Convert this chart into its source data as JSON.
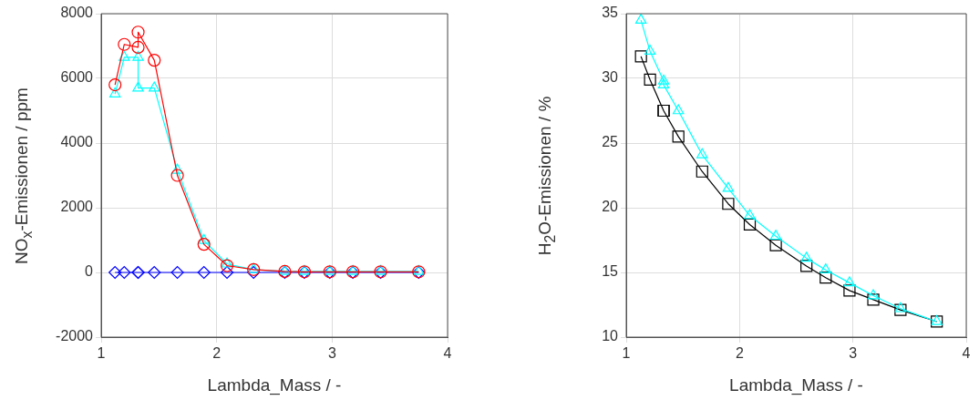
{
  "chart_data": [
    {
      "type": "line",
      "xlabel": "Lambda_Mass / -",
      "ylabel": "NO$_{x}$-Emissionen / ppm",
      "x": [
        1.12,
        1.2,
        1.32,
        1.32,
        1.46,
        1.66,
        1.89,
        2.09,
        2.32,
        2.59,
        2.76,
        2.98,
        3.18,
        3.42,
        3.75
      ],
      "xlim": [
        1,
        4
      ],
      "xticks": [
        1,
        2,
        3,
        4
      ],
      "ylim": [
        -2000,
        8000
      ],
      "yticks": [
        -2000,
        0,
        2000,
        4000,
        6000,
        8000
      ],
      "grid": true,
      "legend": false,
      "line_style": "solid",
      "series": [
        {
          "color": "#ff0000",
          "marker": "circle",
          "values": [
            5800,
            7050,
            6960,
            7430,
            6560,
            3000,
            870,
            210,
            90,
            30,
            20,
            20,
            20,
            20,
            20
          ]
        },
        {
          "color": "#00ffff",
          "marker": "triangle",
          "values": [
            5520,
            6650,
            6650,
            5700,
            5700,
            3160,
            990,
            260,
            90,
            30,
            30,
            30,
            30,
            30,
            30
          ]
        },
        {
          "color": "#0000ff",
          "marker": "diamond",
          "values": [
            0,
            0,
            0,
            0,
            0,
            0,
            0,
            0,
            0,
            0,
            0,
            0,
            0,
            0,
            0
          ]
        }
      ]
    },
    {
      "type": "line",
      "xlabel": "Lambda_Mass / -",
      "ylabel": "H$_{2}$O-Emissionen / %",
      "x": [
        1.13,
        1.21,
        1.33,
        1.33,
        1.46,
        1.67,
        1.9,
        2.09,
        2.32,
        2.59,
        2.76,
        2.97,
        3.18,
        3.42,
        3.74
      ],
      "xlim": [
        1,
        4
      ],
      "xticks": [
        1,
        2,
        3,
        4
      ],
      "ylim": [
        10,
        35
      ],
      "yticks": [
        10,
        15,
        20,
        25,
        30,
        35
      ],
      "grid": true,
      "legend": false,
      "line_style": "solid",
      "series": [
        {
          "color": "#00ffff",
          "marker": "triangle",
          "values": [
            34.5,
            32.1,
            29.8,
            29.5,
            27.5,
            24.1,
            21.5,
            19.4,
            17.8,
            16.1,
            15.2,
            14.2,
            13.2,
            12.2,
            11.2
          ]
        },
        {
          "color": "#000000",
          "marker": "square",
          "values": [
            31.7,
            29.9,
            27.5,
            27.5,
            25.5,
            22.8,
            20.3,
            18.7,
            17.1,
            15.5,
            14.6,
            13.6,
            12.9,
            12.1,
            11.2
          ]
        }
      ]
    }
  ]
}
